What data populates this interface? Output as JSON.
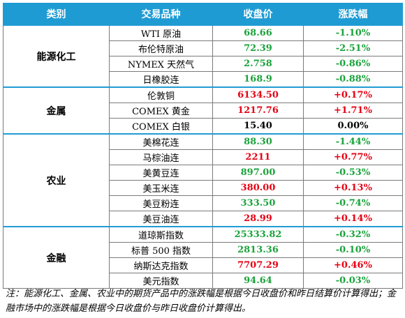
{
  "headers": [
    "类别",
    "交易品种",
    "收盘价",
    "涨跌幅"
  ],
  "groups": [
    {
      "category": "能源化工",
      "rows": [
        {
          "name": "WTI 原油",
          "price": "68.66",
          "change": "-1.10%",
          "dir": "down"
        },
        {
          "name": "布伦特原油",
          "price": "72.39",
          "change": "-2.51%",
          "dir": "down"
        },
        {
          "name": "NYMEX 天然气",
          "price": "2.758",
          "change": "-0.86%",
          "dir": "down"
        },
        {
          "name": "日橡胶连",
          "price": "168.9",
          "change": "-0.88%",
          "dir": "down"
        }
      ]
    },
    {
      "category": "金属",
      "rows": [
        {
          "name": "伦敦铜",
          "price": "6134.50",
          "change": "+0.17%",
          "dir": "up"
        },
        {
          "name": "COMEX 黄金",
          "price": "1217.76",
          "change": "+1.71%",
          "dir": "up"
        },
        {
          "name": "COMEX 白银",
          "price": "15.40",
          "change": "0.00%",
          "dir": "flat"
        }
      ]
    },
    {
      "category": "农业",
      "rows": [
        {
          "name": "美棉花连",
          "price": "88.30",
          "change": "-1.44%",
          "dir": "down"
        },
        {
          "name": "马棕油连",
          "price": "2211",
          "change": "+0.77%",
          "dir": "up"
        },
        {
          "name": "美黄豆连",
          "price": "897.00",
          "change": "-0.53%",
          "dir": "down"
        },
        {
          "name": "美玉米连",
          "price": "380.00",
          "change": "+0.13%",
          "dir": "up"
        },
        {
          "name": "美豆粉连",
          "price": "333.50",
          "change": "-0.74%",
          "dir": "down"
        },
        {
          "name": "美豆油连",
          "price": "28.99",
          "change": "+0.14%",
          "dir": "up"
        }
      ]
    },
    {
      "category": "金融",
      "rows": [
        {
          "name": "道琼斯指数",
          "price": "25333.82",
          "change": "-0.32%",
          "dir": "down"
        },
        {
          "name": "标普 500 指数",
          "price": "2813.36",
          "change": "-0.10%",
          "dir": "down"
        },
        {
          "name": "纳斯达克指数",
          "price": "7707.29",
          "change": "+0.46%",
          "dir": "up"
        },
        {
          "name": "美元指数",
          "price": "94.64",
          "change": "-0.03%",
          "dir": "down"
        }
      ]
    }
  ],
  "colors": {
    "header_bg": "#1f9bd3",
    "up": "#e60012",
    "down": "#1aa33b",
    "flat": "#000000"
  },
  "note": "注：能源化工、金属、农业中的期货产品中的涨跌幅是根据今日收盘价和昨日结算价计算得出；金融市场中的涨跌幅是根据今日收盘价与昨日收盘价计算得出。"
}
